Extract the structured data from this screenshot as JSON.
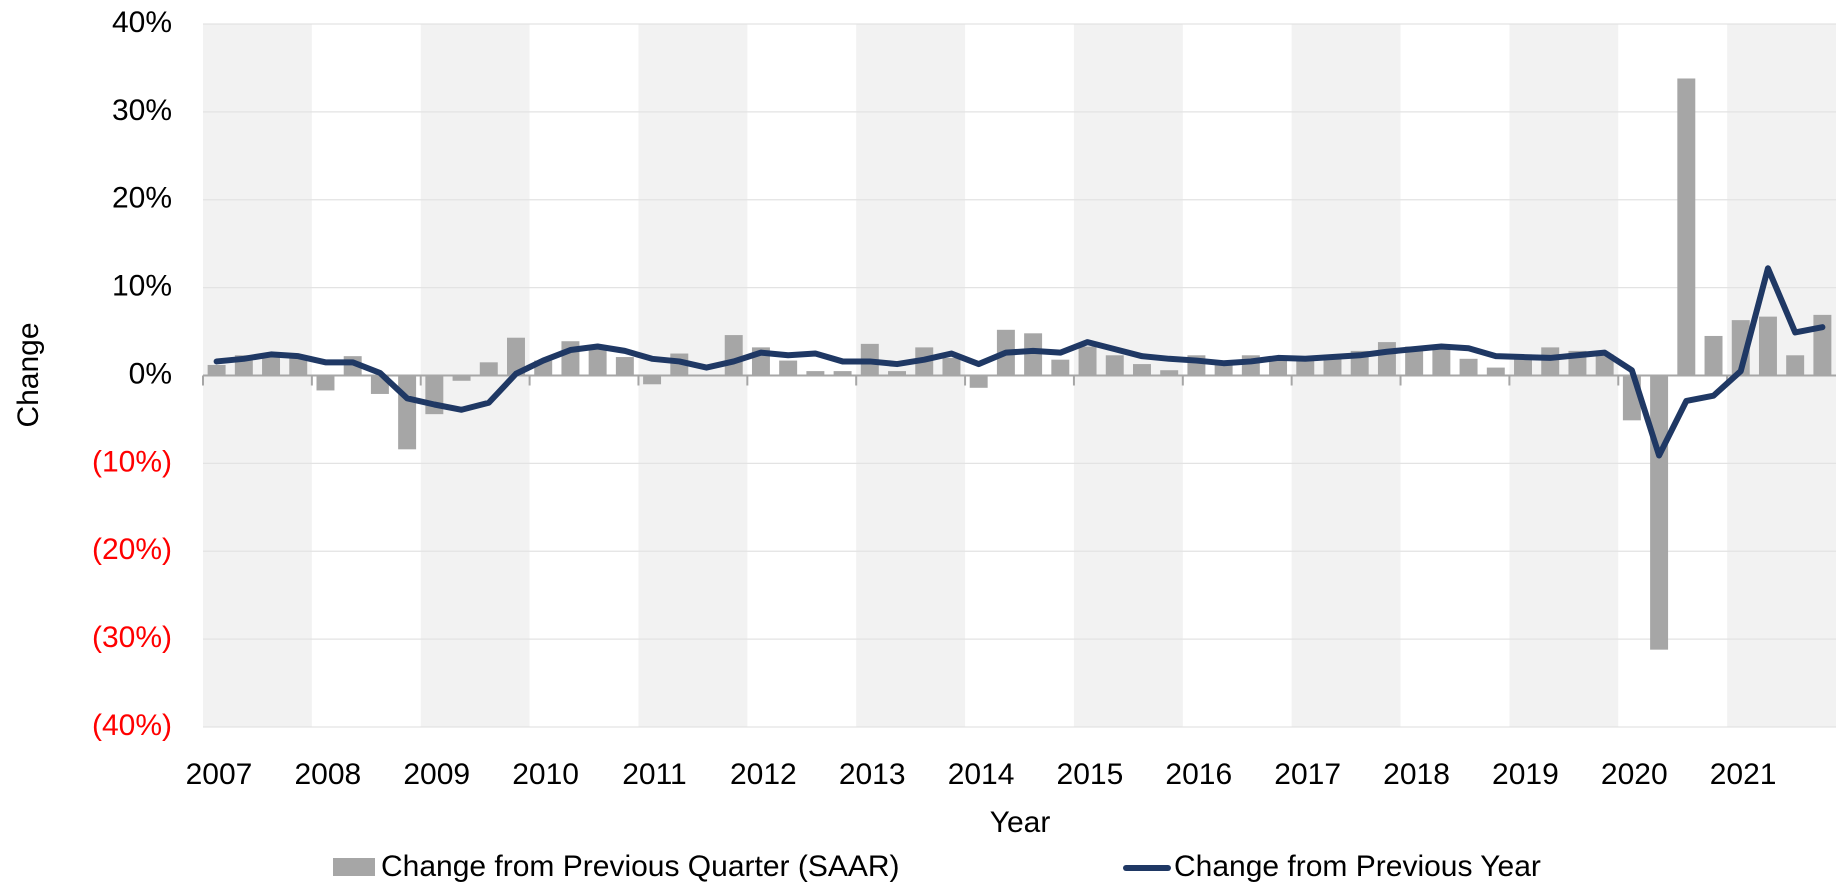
{
  "chart_data": {
    "type": "bar_line",
    "y_label": "Change",
    "x_label": "Year",
    "categories": [
      "2007",
      null,
      null,
      null,
      "2008",
      null,
      null,
      null,
      "2009",
      null,
      null,
      null,
      "2010",
      null,
      null,
      null,
      "2011",
      null,
      null,
      null,
      "2012",
      null,
      null,
      null,
      "2013",
      null,
      null,
      null,
      "2014",
      null,
      null,
      null,
      "2015",
      null,
      null,
      null,
      "2016",
      null,
      null,
      null,
      "2017",
      null,
      null,
      null,
      "2018",
      null,
      null,
      null,
      "2019",
      null,
      null,
      null,
      "2020",
      null,
      null,
      null,
      "2021",
      null,
      null,
      null
    ],
    "series": [
      {
        "name": "Change from Previous Quarter (SAAR)",
        "type": "bar",
        "color": "#a6a6a6",
        "values": [
          1.2,
          2.3,
          2.3,
          2.0,
          -1.7,
          2.2,
          -2.1,
          -8.4,
          -4.4,
          -0.6,
          1.5,
          4.3,
          1.7,
          3.9,
          3.0,
          2.1,
          -1.0,
          2.5,
          0.0,
          4.6,
          3.2,
          1.7,
          0.5,
          0.5,
          3.6,
          0.5,
          3.2,
          2.0,
          -1.4,
          5.2,
          4.8,
          1.8,
          3.3,
          2.3,
          1.3,
          0.6,
          2.3,
          1.3,
          2.3,
          2.0,
          2.0,
          2.3,
          2.8,
          3.8,
          3.3,
          3.3,
          1.9,
          0.9,
          2.4,
          3.2,
          2.8,
          2.4,
          -5.1,
          -31.2,
          33.8,
          4.5,
          6.3,
          6.7,
          2.3,
          6.9
        ]
      },
      {
        "name": "Change from Previous Year",
        "type": "line",
        "color": "#1f3864",
        "values": [
          1.6,
          1.9,
          2.4,
          2.2,
          1.5,
          1.5,
          0.3,
          -2.6,
          -3.3,
          -3.9,
          -3.1,
          0.2,
          1.7,
          2.9,
          3.3,
          2.8,
          1.9,
          1.6,
          0.9,
          1.6,
          2.6,
          2.3,
          2.5,
          1.6,
          1.6,
          1.3,
          1.8,
          2.5,
          1.3,
          2.6,
          2.8,
          2.6,
          3.8,
          3.0,
          2.2,
          1.9,
          1.7,
          1.4,
          1.6,
          2.0,
          1.9,
          2.1,
          2.3,
          2.7,
          3.0,
          3.3,
          3.1,
          2.2,
          2.1,
          2.0,
          2.3,
          2.6,
          0.6,
          -9.1,
          -2.9,
          -2.3,
          0.5,
          12.2,
          4.9,
          5.5
        ]
      }
    ],
    "ylim": [
      -40,
      40
    ],
    "yticks": [
      {
        "value": -40,
        "label": "(40%)"
      },
      {
        "value": -30,
        "label": "(30%)"
      },
      {
        "value": -20,
        "label": "(20%)"
      },
      {
        "value": -10,
        "label": "(10%)"
      },
      {
        "value": 0,
        "label": "0%"
      },
      {
        "value": 10,
        "label": "10%"
      },
      {
        "value": 20,
        "label": "20%"
      },
      {
        "value": 30,
        "label": "30%"
      },
      {
        "value": 40,
        "label": "40%"
      }
    ],
    "negative_label_color": "#ff0000",
    "grid": true
  }
}
